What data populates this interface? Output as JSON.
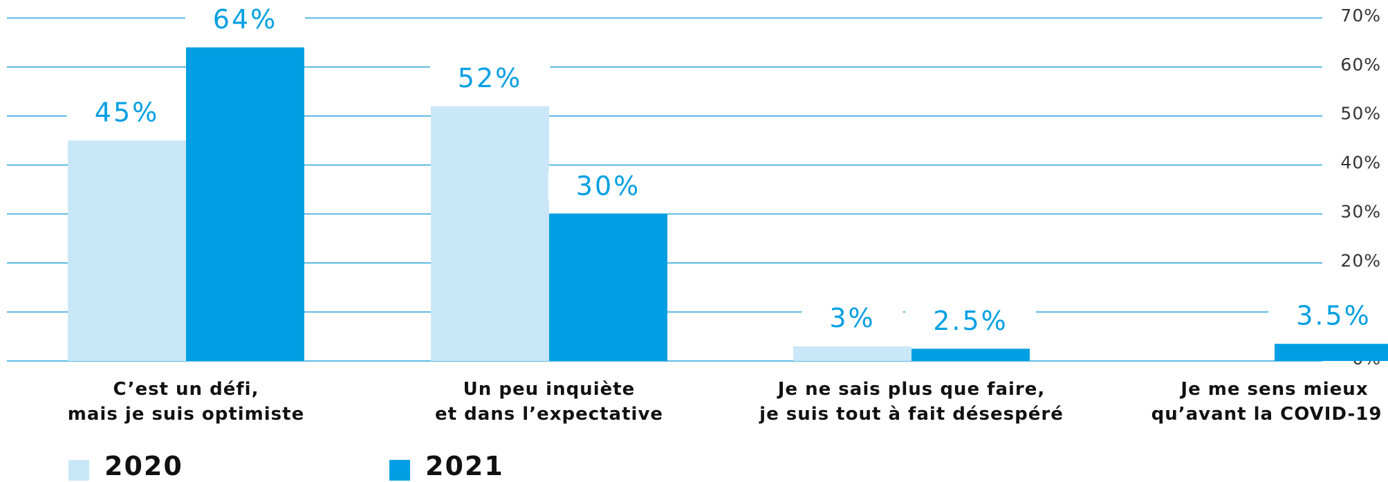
{
  "chart_data": {
    "type": "bar",
    "categories": [
      "C’est un défi,\nmais je suis optimiste",
      "Un peu inquiète\net dans l’expectative",
      "Je ne sais plus que faire,\nje suis tout à fait désespéré",
      "Je me sens mieux\nqu’avant la COVID-19 !"
    ],
    "series": [
      {
        "name": "2020",
        "color": "#c9e7f8",
        "values": [
          45,
          52,
          3,
          null
        ],
        "value_labels": [
          "45%",
          "52%",
          "3%",
          null
        ]
      },
      {
        "name": "2021",
        "color": "#009fe3",
        "values": [
          64,
          30,
          2.5,
          3.5
        ],
        "value_labels": [
          "64%",
          "30%",
          "2.5%",
          "3.5%"
        ]
      }
    ],
    "ylim": [
      0,
      70
    ],
    "yticks": [
      {
        "value": 0,
        "label": "0%"
      },
      {
        "value": 10,
        "label": "10%"
      },
      {
        "value": 20,
        "label": "20%"
      },
      {
        "value": 30,
        "label": "30%"
      },
      {
        "value": 40,
        "label": "40%"
      },
      {
        "value": 50,
        "label": "50%"
      },
      {
        "value": 60,
        "label": "60%"
      },
      {
        "value": 70,
        "label": "70%"
      }
    ],
    "grid": true,
    "grid_color": "#29a3dc",
    "legend": "bottom-left"
  }
}
